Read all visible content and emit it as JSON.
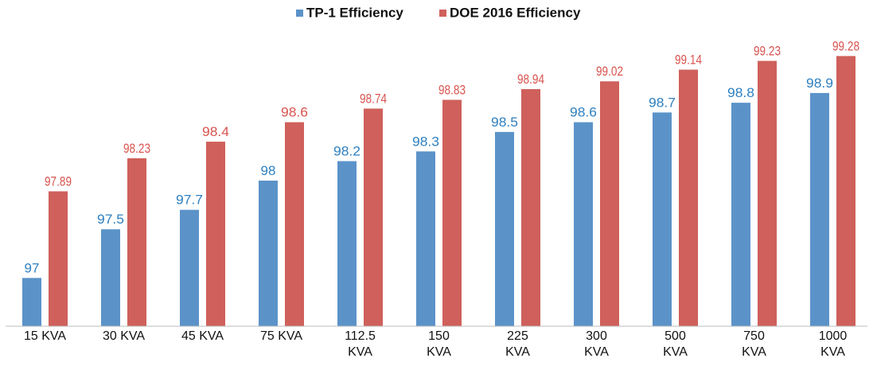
{
  "chart_data": {
    "type": "bar",
    "categories": [
      "15 KVA",
      "30 KVA",
      "45 KVA",
      "75 KVA",
      "112.5 KVA",
      "150 KVA",
      "225 KVA",
      "300 KVA",
      "500 KVA",
      "750 KVA",
      "1000 KVA"
    ],
    "series": [
      {
        "name": "TP-1 Efficiency",
        "color": "#5b93c9",
        "label_color": "#2f80c0",
        "values": [
          97,
          97.5,
          97.7,
          98,
          98.2,
          98.3,
          98.5,
          98.6,
          98.7,
          98.8,
          98.9
        ]
      },
      {
        "name": "DOE 2016 Efficiency",
        "color": "#cf605b",
        "label_color": "#d9534f",
        "values": [
          97.89,
          98.23,
          98.4,
          98.6,
          98.74,
          98.83,
          98.94,
          99.02,
          99.14,
          99.23,
          99.28
        ]
      }
    ],
    "ylim": [
      96.5,
      99.5
    ],
    "legend": "top"
  }
}
